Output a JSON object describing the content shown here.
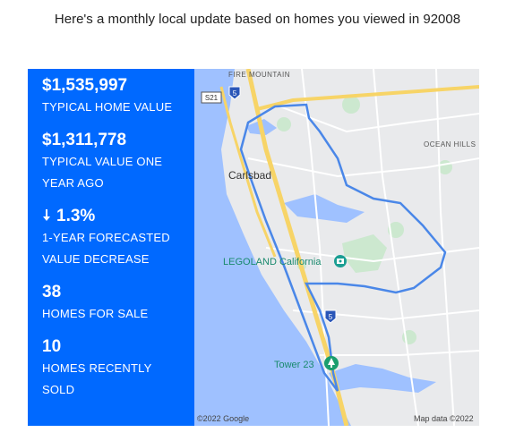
{
  "header": {
    "text": "Here's a monthly local update based on homes you viewed in 92008"
  },
  "stats": {
    "home_value": {
      "value": "$1,535,997",
      "label": "TYPICAL HOME VALUE"
    },
    "year_ago": {
      "value": "$1,311,778",
      "label_line1": "TYPICAL VALUE ONE",
      "label_line2": "YEAR AGO"
    },
    "forecast": {
      "value": "1.3%",
      "direction": "down",
      "arrow_icon": "arrow-down-icon",
      "label_line1": "1-YEAR FORECASTED",
      "label_line2": "VALUE DECREASE"
    },
    "for_sale": {
      "value": "38",
      "label": "HOMES FOR SALE"
    },
    "sold": {
      "value": "10",
      "label_line1": "HOMES RECENTLY",
      "label_line2": "SOLD"
    }
  },
  "map": {
    "labels": {
      "fire_mountain": "FIRE MOUNTAIN",
      "ocean_hills": "OCEAN HILLS",
      "carlsbad": "Carlsbad",
      "legoland": "LEGOLAND California",
      "tower23": "Tower 23"
    },
    "shields": {
      "s21": "S21",
      "i5_top": "5",
      "i5_mid": "5"
    },
    "footer": {
      "copyright": "©2022 Google",
      "map_data": "Map data ©2022"
    },
    "colors": {
      "water": "#9fc1ff",
      "land": "#e9eaec",
      "boundary": "#4a87e8",
      "highway": "#f7d467",
      "accent_panel": "#0069ff"
    }
  }
}
